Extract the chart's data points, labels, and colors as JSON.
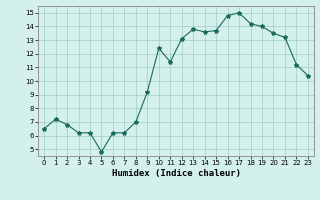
{
  "x": [
    0,
    1,
    2,
    3,
    4,
    5,
    6,
    7,
    8,
    9,
    10,
    11,
    12,
    13,
    14,
    15,
    16,
    17,
    18,
    19,
    20,
    21,
    22,
    23
  ],
  "y": [
    6.5,
    7.2,
    6.8,
    6.2,
    6.2,
    4.8,
    6.2,
    6.2,
    7.0,
    9.2,
    12.4,
    11.4,
    13.1,
    13.8,
    13.6,
    13.7,
    14.8,
    15.0,
    14.2,
    14.0,
    13.5,
    13.2,
    11.2,
    10.4
  ],
  "xlabel": "Humidex (Indice chaleur)",
  "xlim": [
    -0.5,
    23.5
  ],
  "ylim": [
    4.5,
    15.5
  ],
  "yticks": [
    5,
    6,
    7,
    8,
    9,
    10,
    11,
    12,
    13,
    14,
    15
  ],
  "xticks": [
    0,
    1,
    2,
    3,
    4,
    5,
    6,
    7,
    8,
    9,
    10,
    11,
    12,
    13,
    14,
    15,
    16,
    17,
    18,
    19,
    20,
    21,
    22,
    23
  ],
  "line_color": "#1a6b5a",
  "marker": "*",
  "marker_size": 3,
  "bg_color": "#d4f0ec",
  "grid_color": "#a0ccc8"
}
